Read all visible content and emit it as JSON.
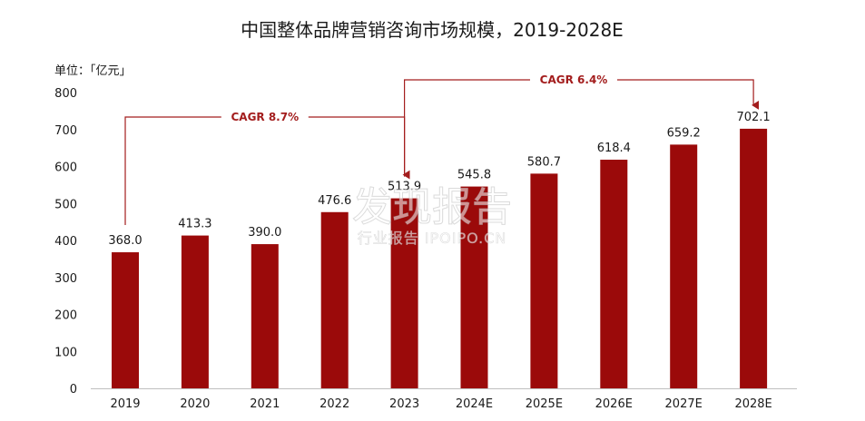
{
  "chart_data": {
    "type": "bar",
    "title": "中国整体品牌营销咨询市场规模，2019-2028E",
    "unit_label": "单位：「亿元」",
    "categories": [
      "2019",
      "2020",
      "2021",
      "2022",
      "2023",
      "2024E",
      "2025E",
      "2026E",
      "2027E",
      "2028E"
    ],
    "values": [
      368.0,
      413.3,
      390.0,
      476.6,
      513.9,
      545.8,
      580.7,
      618.4,
      659.2,
      702.1
    ],
    "value_labels": [
      "368.0",
      "413.3",
      "390.0",
      "476.6",
      "513.9",
      "545.8",
      "580.7",
      "618.4",
      "659.2",
      "702.1"
    ],
    "ylim": [
      0,
      800
    ],
    "yticks": [
      0,
      100,
      200,
      300,
      400,
      500,
      600,
      700,
      800
    ],
    "bar_color": "#9b0a0a",
    "annotation_color": "#a31d1d",
    "annotations": [
      {
        "text": "CAGR 8.7%",
        "from_index": 0,
        "to_index": 4
      },
      {
        "text": "CAGR 6.4%",
        "from_index": 4,
        "to_index": 9
      }
    ],
    "grid": false,
    "legend": "none"
  },
  "watermark": {
    "main": "发现报告",
    "sub": "行业报告 IPOIPO.CN"
  }
}
